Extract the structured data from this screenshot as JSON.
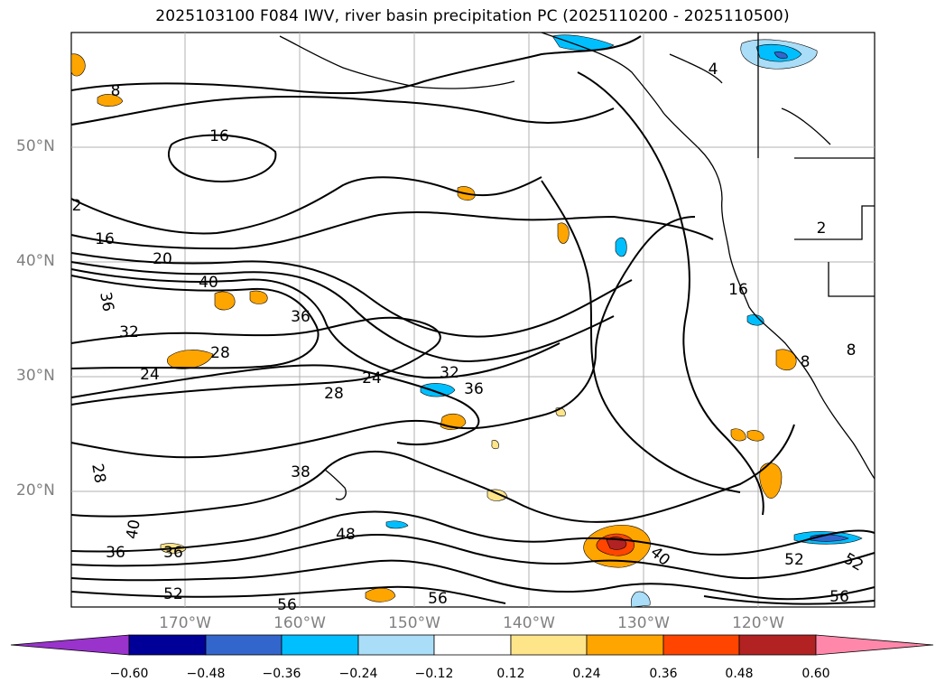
{
  "title": "2025103100 F084 IWV, river basin precipitation PC (2025110200 - 2025110500)",
  "map": {
    "lat_labels": [
      "50°N",
      "40°N",
      "30°N",
      "20°N"
    ],
    "lon_labels": [
      "170°W",
      "160°W",
      "150°W",
      "140°W",
      "130°W",
      "120°W"
    ],
    "contour_labels": [
      "8",
      "16",
      "2",
      "16",
      "20",
      "40",
      "36",
      "32",
      "36",
      "28",
      "24",
      "24",
      "28",
      "32",
      "36",
      "38",
      "28",
      "40",
      "36",
      "36",
      "52",
      "56",
      "48",
      "56",
      "40",
      "52",
      "52",
      "56",
      "2",
      "16",
      "8",
      "8",
      "4"
    ]
  },
  "colorbar": {
    "ticks": [
      "−0.60",
      "−0.48",
      "−0.36",
      "−0.24",
      "−0.12",
      "0.12",
      "0.24",
      "0.36",
      "0.48",
      "0.60"
    ],
    "colors": [
      "#9933cc",
      "#000099",
      "#3366cc",
      "#00bfff",
      "#aaddf7",
      "#ffffff",
      "#ffe58a",
      "#ffa500",
      "#ff4500",
      "#b22222",
      "#ff88aa"
    ]
  }
}
